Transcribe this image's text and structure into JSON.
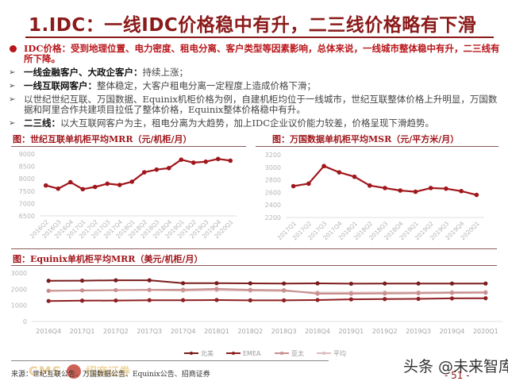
{
  "header": {
    "title": "1.IDC：一线IDC价格稳中有升，二三线价格略有下滑"
  },
  "bullets": [
    {
      "type": "main",
      "marker": "circle-icon",
      "lead": "",
      "text": "IDC价格：受到地理位置、电力密度、租电分离、客户类型等因素影响，总体来说，一线城市整体稳中有升，二三线有所下降。"
    },
    {
      "type": "sub",
      "marker": "arrow-icon",
      "lead": "一线金融客户、大政企客户：",
      "text": "持续上涨；"
    },
    {
      "type": "sub",
      "marker": "arrow-icon",
      "lead": "一线互联网客户：",
      "text": "整体稳定，大客户租电分离一定程度上造成价格下滑；"
    },
    {
      "type": "sub",
      "marker": "arrow-icon",
      "lead": "",
      "text": "以世纪世纪互联、万国数据、Equinix机柜价格为例，自建机柜均位于一线城市，世纪互联整体价格上升明显，万国数据和阿里合作共建项目拉低了整体价格，Equinix整体价格稳中有升。"
    },
    {
      "type": "sub",
      "marker": "arrow-icon",
      "lead": "二三线：",
      "text": "以大互联网客户为主，租电分离为大趋势，加上IDC企业议价能力较差，价格呈现下滑趋势。"
    }
  ],
  "arrow_glyph": "➢",
  "colors": {
    "brand_red": "#8b1a1a",
    "line_red": "#a0161b",
    "north_america": "#7b1c1c",
    "emea": "#8e1f22",
    "apac": "#c98f8f",
    "average": "#dcbcbc"
  },
  "chart_data": [
    {
      "type": "line",
      "title": "图：世纪互联单机柜平均MRR（元/机柜/月）",
      "xlabel": "",
      "ylabel": "",
      "ylim": [
        6500,
        9000
      ],
      "yticks": [
        9000,
        8500,
        8000,
        7500,
        7000,
        6500
      ],
      "grid": false,
      "legend": null,
      "categories": [
        "2016Q2",
        "2016Q3",
        "2016Q4",
        "2017Q1",
        "2017Q2",
        "2017Q3",
        "2017Q4",
        "2018Q1",
        "2018Q2",
        "2018Q3",
        "2018Q4",
        "2019Q1",
        "2019Q2",
        "2019Q3",
        "2019Q4",
        "2020Q1"
      ],
      "series": [
        {
          "name": "世纪互联MRR",
          "values": [
            7730,
            7600,
            7860,
            7580,
            7670,
            7800,
            7750,
            7880,
            8260,
            8370,
            8430,
            8770,
            8650,
            8690,
            8800,
            8730
          ]
        }
      ]
    },
    {
      "type": "line",
      "title": "图：万国数据单机柜平均MSR（元/平方米/月）",
      "xlabel": "",
      "ylabel": "",
      "ylim": [
        2200,
        3200
      ],
      "yticks": [
        3200,
        3000,
        2800,
        2600,
        2400,
        2200
      ],
      "grid": false,
      "legend": null,
      "categories": [
        "2017Q1",
        "2017Q2",
        "2017Q3",
        "2017Q4",
        "2018Q1",
        "2018Q2",
        "2018Q3",
        "2018Q4",
        "2019Q1",
        "2019Q2",
        "2019Q3",
        "2019Q4",
        "2020Q1"
      ],
      "series": [
        {
          "name": "万国数据MSR",
          "values": [
            2700,
            2740,
            3020,
            2920,
            2850,
            2710,
            2670,
            2630,
            2610,
            2670,
            2660,
            2620,
            2560
          ]
        }
      ]
    },
    {
      "type": "line",
      "title": "图：Equinix单机柜平均MRR（美元/机柜/月）",
      "xlabel": "",
      "ylabel": "",
      "ylim": [
        0,
        3000
      ],
      "yticks": [
        3000,
        2000,
        1000,
        0
      ],
      "grid": false,
      "legend": {
        "position": "bottom",
        "entries": [
          "北美",
          "EMEA",
          "亚太",
          "平均"
        ]
      },
      "categories": [
        "2016Q4",
        "2017Q1",
        "2017Q2",
        "2017Q3",
        "2017Q4",
        "2018Q1",
        "2018Q2",
        "2018Q3",
        "2018Q4",
        "2019Q1",
        "2019Q2",
        "2019Q3",
        "2019Q4",
        "2020Q1"
      ],
      "series": [
        {
          "name": "北美",
          "color": "#7b1c1c",
          "values": [
            2520,
            2530,
            2550,
            2550,
            2370,
            2370,
            2360,
            2350,
            2360,
            2340,
            2350,
            2350,
            2350,
            2350
          ]
        },
        {
          "name": "EMEA",
          "color": "#8e1f22",
          "values": [
            1270,
            1290,
            1300,
            1320,
            1320,
            1330,
            1310,
            1310,
            1330,
            1370,
            1390,
            1400,
            1430,
            1440
          ]
        },
        {
          "name": "亚太",
          "color": "#c98f8f",
          "values": [
            1900,
            1920,
            1940,
            1960,
            1970,
            2020,
            1960,
            1940,
            1720,
            1720,
            1730,
            1750,
            1770,
            1780
          ]
        },
        {
          "name": "平均",
          "color": "#dcbcbc",
          "values": [
            1900,
            1930,
            1950,
            1950,
            1910,
            1950,
            1910,
            1890,
            1790,
            1790,
            1800,
            1800,
            1820,
            1830
          ]
        }
      ]
    }
  ],
  "footer": {
    "source": "来源：世纪互联公告、万国数据公告、Equinix公告、招商证券",
    "watermark_logo": "CMS",
    "watermark_logo_text": "招商证券",
    "brand": "头条 @未来智库",
    "page": "- 51 -"
  }
}
